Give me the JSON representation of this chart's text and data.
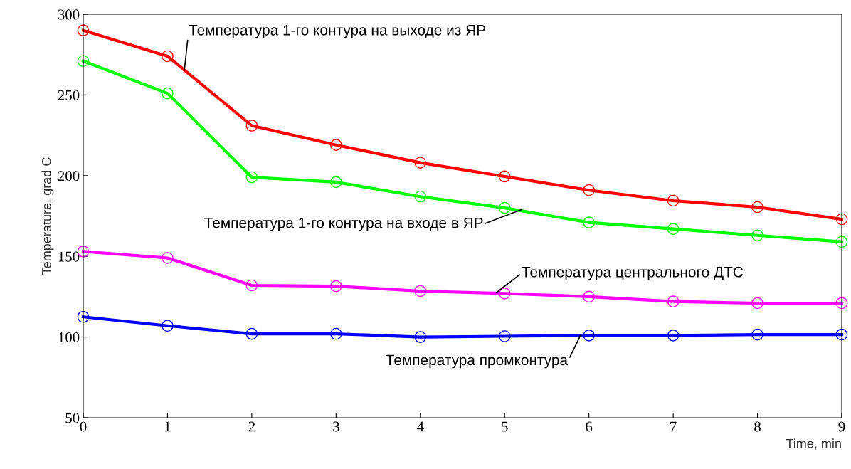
{
  "chart_data": {
    "type": "line",
    "xlabel": "Time, min",
    "ylabel": "Temperature, grad C",
    "x": [
      0,
      1,
      2,
      3,
      4,
      5,
      6,
      7,
      8,
      9
    ],
    "series": [
      {
        "color": "#ff0000",
        "values": [
          290,
          274,
          231,
          219,
          208,
          199.5,
          191,
          184.5,
          180.5,
          173
        ]
      },
      {
        "color": "#00ff00",
        "values": [
          271,
          251,
          199,
          196,
          187,
          180,
          171,
          167,
          163,
          159
        ]
      },
      {
        "color": "#ff00ff",
        "values": [
          153,
          149,
          132,
          131.5,
          128.5,
          127,
          125,
          122,
          121,
          121
        ]
      },
      {
        "color": "#0000ff",
        "values": [
          112.5,
          107,
          102,
          102,
          100,
          100.5,
          101,
          101,
          101.5,
          101.5
        ]
      }
    ],
    "annotations": [
      {
        "text": "Температура 1-го контура на выходе из ЯР",
        "x": 1.2,
        "y": 265.4
      },
      {
        "text": "Температура 1-го контура на входе в ЯР",
        "x": 5.2,
        "y": 179
      },
      {
        "text": "Температура центрального ДТС",
        "x": 4.9,
        "y": 127.5
      },
      {
        "text": "Температура промконтура",
        "x": 5.9,
        "y": 101
      }
    ],
    "xlim": [
      0,
      9
    ],
    "ylim": [
      50,
      300
    ],
    "xticks": [
      0,
      1,
      2,
      3,
      4,
      5,
      6,
      7,
      8,
      9
    ],
    "yticks": [
      50,
      100,
      150,
      200,
      250,
      300
    ],
    "grid": false,
    "legend": false,
    "marker": "circle",
    "line_style": "solid"
  }
}
